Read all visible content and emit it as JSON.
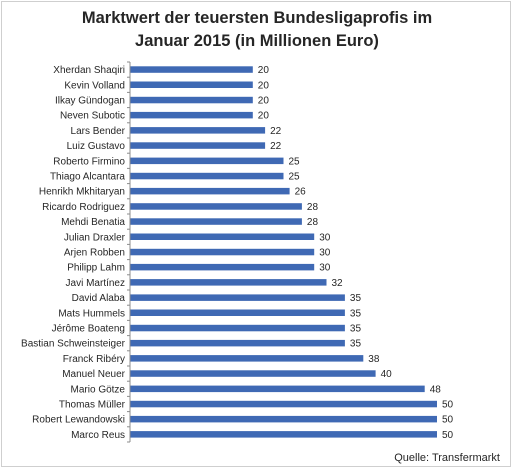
{
  "title_lines": [
    "Marktwert der teuersten Bundesligaprofis im",
    "Januar 2015 (in Millionen Euro)"
  ],
  "source": "Quelle: Transfermarkt",
  "colors": {
    "bar": "#3f69b4",
    "axis": "#8c8c8c",
    "text": "#262626"
  },
  "chart_data": {
    "type": "bar",
    "orientation": "horizontal",
    "title": "Marktwert der teuersten Bundesligaprofis im Januar 2015 (in Millionen Euro)",
    "xlabel": "",
    "ylabel": "",
    "xlim": [
      0,
      50
    ],
    "grid": false,
    "legend": "none",
    "categories": [
      "Xherdan Shaqiri",
      "Kevin Volland",
      "Ilkay Gündogan",
      "Neven Subotic",
      "Lars Bender",
      "Luiz Gustavo",
      "Roberto Firmino",
      "Thiago Alcantara",
      "Henrikh Mkhitaryan",
      "Ricardo Rodriguez",
      "Mehdi Benatia",
      "Julian Draxler",
      "Arjen Robben",
      "Philipp Lahm",
      "Javi Martínez",
      "David Alaba",
      "Mats Hummels",
      "Jérôme Boateng",
      "Bastian Schweinsteiger",
      "Franck Ribéry",
      "Manuel Neuer",
      "Mario Götze",
      "Thomas Müller",
      "Robert Lewandowski",
      "Marco Reus"
    ],
    "values": [
      20,
      20,
      20,
      20,
      22,
      22,
      25,
      25,
      26,
      28,
      28,
      30,
      30,
      30,
      32,
      35,
      35,
      35,
      35,
      38,
      40,
      48,
      50,
      50,
      50
    ]
  }
}
